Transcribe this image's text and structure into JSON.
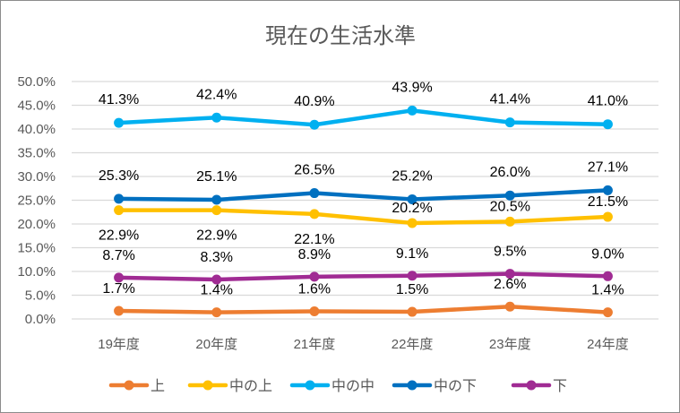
{
  "chart_data": {
    "type": "line",
    "title": "現在の生活水準",
    "xlabel": "",
    "ylabel": "",
    "categories": [
      "19年度",
      "20年度",
      "21年度",
      "22年度",
      "23年度",
      "24年度"
    ],
    "ylim": [
      0,
      50
    ],
    "yticks": [
      "0.0%",
      "5.0%",
      "10.0%",
      "15.0%",
      "20.0%",
      "25.0%",
      "30.0%",
      "35.0%",
      "40.0%",
      "45.0%",
      "50.0%"
    ],
    "grid": true,
    "legend_position": "bottom",
    "series": [
      {
        "name": "上",
        "color": "#ED7D31",
        "values": [
          1.7,
          1.4,
          1.6,
          1.5,
          2.6,
          1.4
        ],
        "labels": [
          "1.7%",
          "1.4%",
          "1.6%",
          "1.5%",
          "2.6%",
          "1.4%"
        ]
      },
      {
        "name": "中の上",
        "color": "#FFC000",
        "values": [
          22.9,
          22.9,
          22.1,
          20.2,
          20.5,
          21.5
        ],
        "labels": [
          "22.9%",
          "22.9%",
          "22.1%",
          "20.2%",
          "20.5%",
          "21.5%"
        ]
      },
      {
        "name": "中の中",
        "color": "#00B0F0",
        "values": [
          41.3,
          42.4,
          40.9,
          43.9,
          41.4,
          41.0
        ],
        "labels": [
          "41.3%",
          "42.4%",
          "40.9%",
          "43.9%",
          "41.4%",
          "41.0%"
        ]
      },
      {
        "name": "中の下",
        "color": "#0070C0",
        "values": [
          25.3,
          25.1,
          26.5,
          25.2,
          26.0,
          27.1
        ],
        "labels": [
          "25.3%",
          "25.1%",
          "26.5%",
          "25.2%",
          "26.0%",
          "27.1%"
        ]
      },
      {
        "name": "下",
        "color": "#A02B93",
        "values": [
          8.7,
          8.3,
          8.9,
          9.1,
          9.5,
          9.0
        ],
        "labels": [
          "8.7%",
          "8.3%",
          "8.9%",
          "9.1%",
          "9.5%",
          "9.0%"
        ]
      }
    ]
  }
}
